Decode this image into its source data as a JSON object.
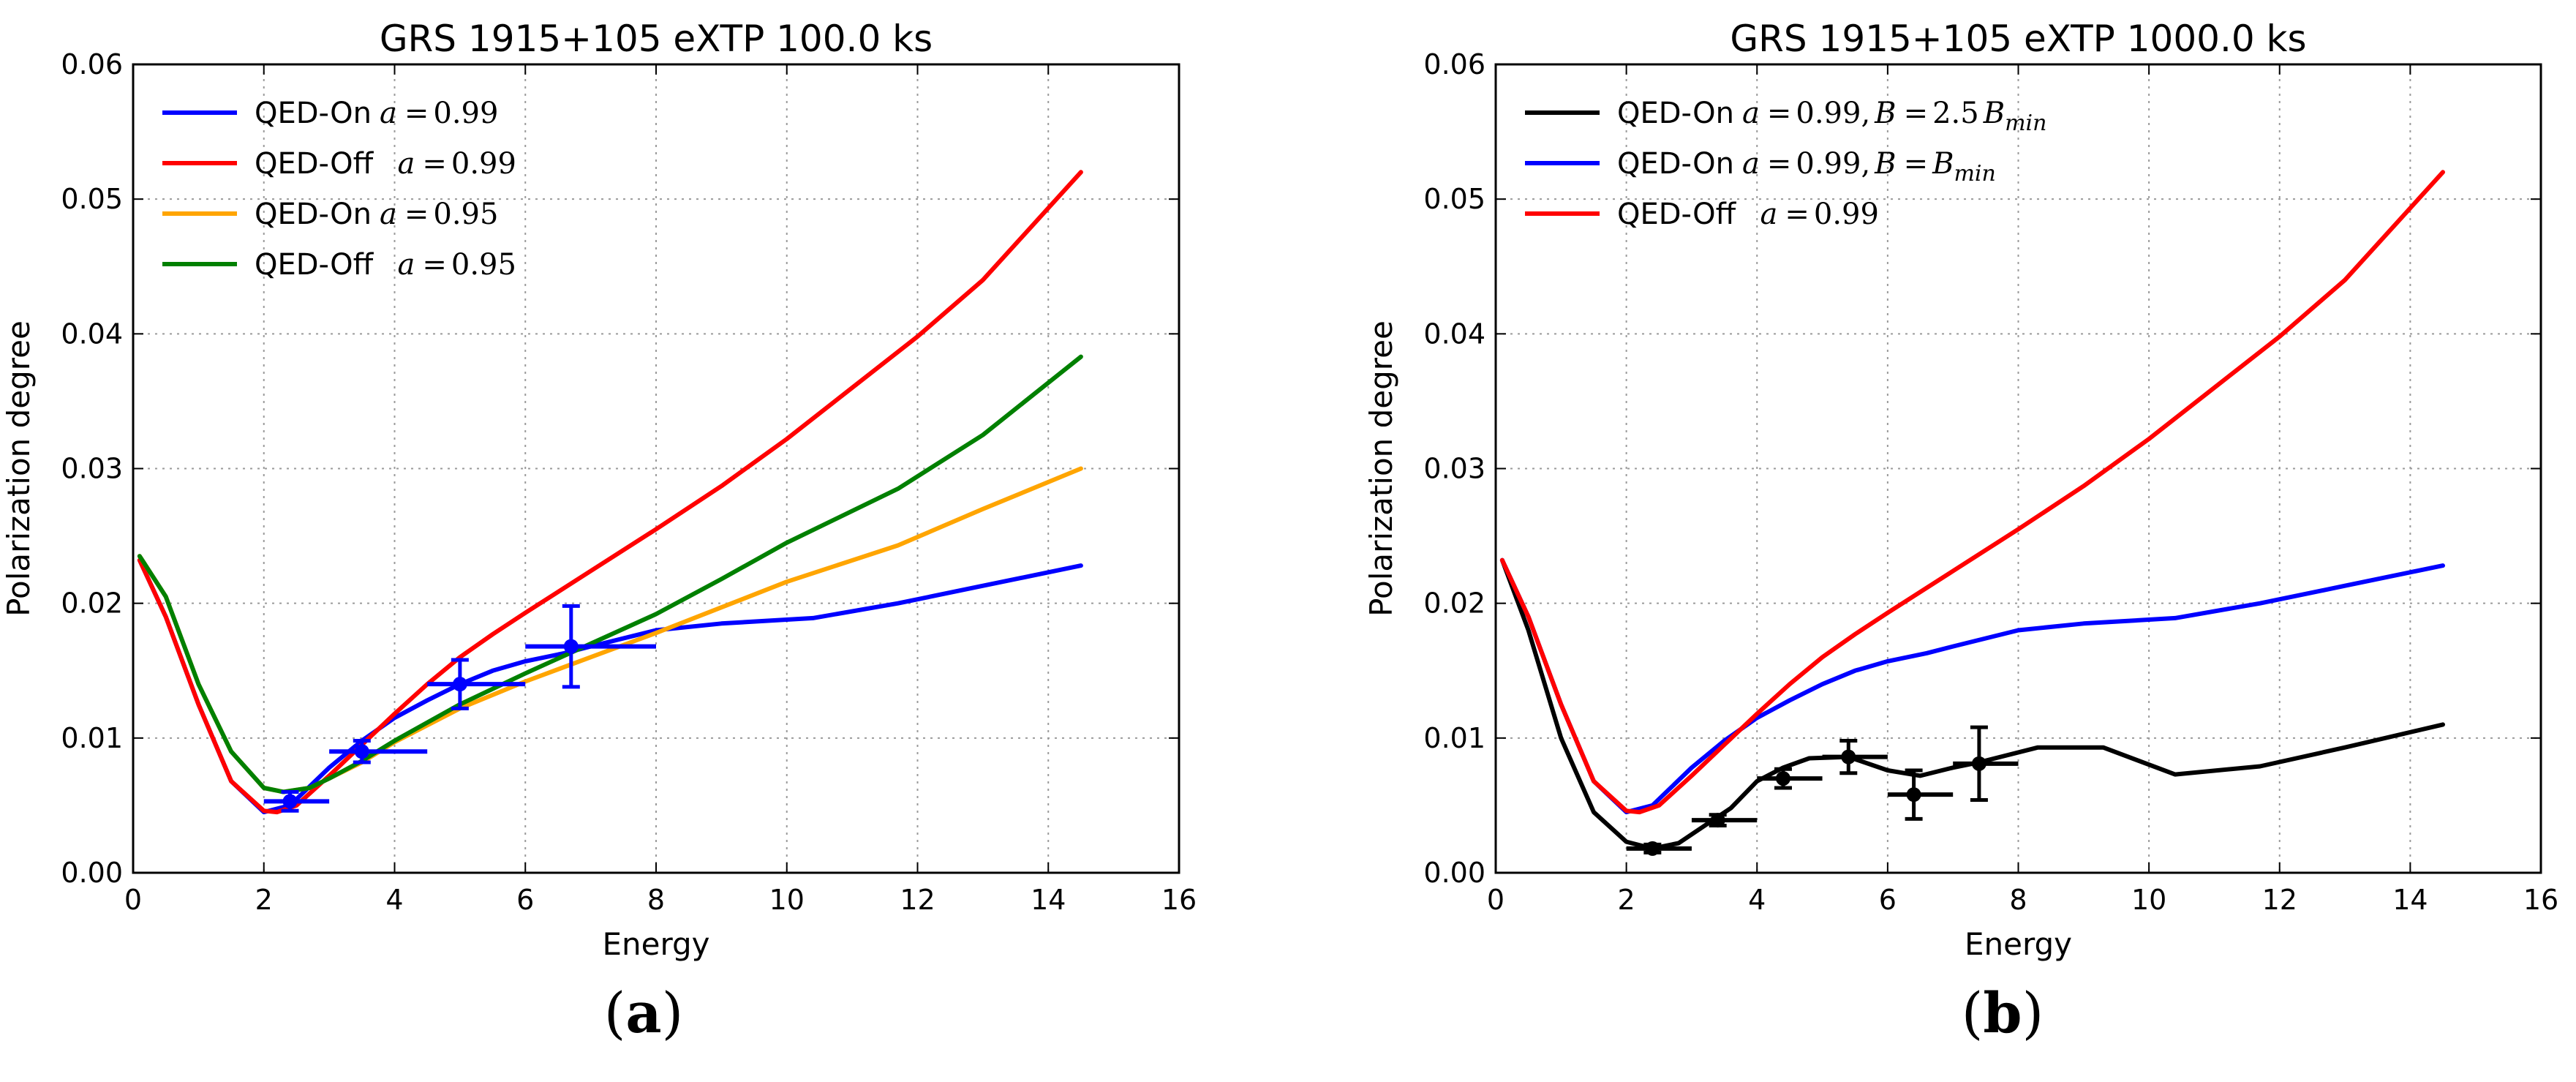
{
  "chart_data": [
    {
      "type": "line",
      "title": "GRS 1915+105 eXTP 100.0 ks",
      "xlabel": "Energy",
      "ylabel": "Polarization degree",
      "xlim": [
        0,
        16
      ],
      "ylim": [
        0,
        0.06
      ],
      "xticks": [
        "0",
        "2",
        "4",
        "6",
        "8",
        "10",
        "12",
        "14",
        "16"
      ],
      "yticks": [
        "0.00",
        "0.01",
        "0.02",
        "0.03",
        "0.04",
        "0.05",
        "0.06"
      ],
      "grid": true,
      "legend_position": "top-left",
      "subcaption": "a",
      "series": [
        {
          "name": "QED-On",
          "math": "a = 0.99",
          "color": "#0000ff",
          "x": [
            0.1,
            0.5,
            1.0,
            1.5,
            2.0,
            2.4,
            3.0,
            3.5,
            4.0,
            4.5,
            5.0,
            5.5,
            6.0,
            6.6,
            7.0,
            8.0,
            9.0,
            10.4,
            11.7,
            13.0,
            14.5
          ],
          "y": [
            0.0232,
            0.019,
            0.0125,
            0.0068,
            0.0045,
            0.005,
            0.0078,
            0.0098,
            0.0115,
            0.0128,
            0.014,
            0.015,
            0.0157,
            0.0163,
            0.0168,
            0.018,
            0.0185,
            0.0189,
            0.02,
            0.0213,
            0.0228
          ]
        },
        {
          "name": "QED-Off",
          "math": "a = 0.99",
          "color": "#ff0000",
          "x": [
            0.1,
            0.5,
            1.0,
            1.5,
            2.0,
            2.2,
            2.5,
            3.0,
            3.5,
            4.0,
            4.5,
            5.0,
            5.5,
            6.0,
            7.0,
            8.0,
            9.0,
            10.0,
            11.0,
            12.0,
            13.0,
            14.5
          ],
          "y": [
            0.0232,
            0.019,
            0.0125,
            0.0068,
            0.0046,
            0.0045,
            0.005,
            0.0072,
            0.0095,
            0.0118,
            0.014,
            0.016,
            0.0177,
            0.0193,
            0.0224,
            0.0255,
            0.0287,
            0.0322,
            0.036,
            0.0398,
            0.044,
            0.052
          ]
        },
        {
          "name": "QED-On",
          "math": "a = 0.95",
          "color": "#ffa500",
          "x": [
            0.1,
            0.5,
            1.0,
            1.5,
            2.0,
            2.3,
            2.7,
            3.0,
            3.5,
            4.0,
            5.0,
            6.0,
            7.0,
            8.0,
            9.0,
            10.0,
            11.7,
            13.0,
            14.5
          ],
          "y": [
            0.0235,
            0.0205,
            0.014,
            0.009,
            0.0063,
            0.006,
            0.0063,
            0.007,
            0.0082,
            0.0097,
            0.0122,
            0.0142,
            0.016,
            0.0178,
            0.0197,
            0.0216,
            0.0243,
            0.027,
            0.03
          ]
        },
        {
          "name": "QED-Off",
          "math": "a = 0.95",
          "color": "#008000",
          "x": [
            0.1,
            0.5,
            1.0,
            1.5,
            2.0,
            2.3,
            2.7,
            3.0,
            3.5,
            4.0,
            5.0,
            6.0,
            7.0,
            8.0,
            9.0,
            10.0,
            11.7,
            13.0,
            14.5
          ],
          "y": [
            0.0235,
            0.0205,
            0.014,
            0.009,
            0.0063,
            0.006,
            0.0063,
            0.007,
            0.0083,
            0.0098,
            0.0125,
            0.0148,
            0.017,
            0.0192,
            0.0218,
            0.0245,
            0.0285,
            0.0325,
            0.0383
          ]
        }
      ],
      "error_points": {
        "color": "#0000ff",
        "points": [
          {
            "x": 2.4,
            "y": 0.0053,
            "xerr": [
              0.4,
              0.6
            ],
            "yerr": 0.0007
          },
          {
            "x": 3.5,
            "y": 0.009,
            "xerr": [
              0.5,
              1.0
            ],
            "yerr": 0.0008
          },
          {
            "x": 5.0,
            "y": 0.014,
            "xerr": [
              0.5,
              1.0
            ],
            "yerr": 0.0018
          },
          {
            "x": 6.7,
            "y": 0.0168,
            "xerr": [
              0.7,
              1.3
            ],
            "yerr": 0.003
          }
        ]
      }
    },
    {
      "type": "line",
      "title": "GRS 1915+105 eXTP 1000.0 ks",
      "xlabel": "Energy",
      "ylabel": "Polarization degree",
      "xlim": [
        0,
        16
      ],
      "ylim": [
        0,
        0.06
      ],
      "xticks": [
        "0",
        "2",
        "4",
        "6",
        "8",
        "10",
        "12",
        "14",
        "16"
      ],
      "yticks": [
        "0.00",
        "0.01",
        "0.02",
        "0.03",
        "0.04",
        "0.05",
        "0.06"
      ],
      "grid": true,
      "legend_position": "top-left",
      "subcaption": "b",
      "series": [
        {
          "name": "QED-On",
          "math": "a = 0.99, B = 2.5B_min",
          "color": "#000000",
          "x": [
            0.1,
            0.5,
            1.0,
            1.5,
            2.0,
            2.4,
            2.8,
            3.2,
            3.6,
            4.0,
            4.4,
            4.8,
            5.4,
            6.0,
            6.5,
            7.0,
            7.4,
            8.3,
            9.3,
            10.4,
            11.7,
            13.0,
            14.5
          ],
          "y": [
            0.0232,
            0.018,
            0.01,
            0.0045,
            0.0023,
            0.0018,
            0.0022,
            0.0035,
            0.0048,
            0.0068,
            0.0078,
            0.0085,
            0.0086,
            0.0076,
            0.0072,
            0.0078,
            0.0082,
            0.0093,
            0.0093,
            0.0073,
            0.0079,
            0.0093,
            0.011
          ]
        },
        {
          "name": "QED-On",
          "math": "a = 0.99, B = B_min",
          "color": "#0000ff",
          "x": [
            0.1,
            0.5,
            1.0,
            1.5,
            2.0,
            2.4,
            3.0,
            3.5,
            4.0,
            4.5,
            5.0,
            5.5,
            6.0,
            6.6,
            7.0,
            8.0,
            9.0,
            10.4,
            11.7,
            13.0,
            14.5
          ],
          "y": [
            0.0232,
            0.019,
            0.0125,
            0.0068,
            0.0045,
            0.005,
            0.0078,
            0.0098,
            0.0115,
            0.0128,
            0.014,
            0.015,
            0.0157,
            0.0163,
            0.0168,
            0.018,
            0.0185,
            0.0189,
            0.02,
            0.0213,
            0.0228
          ]
        },
        {
          "name": "QED-Off",
          "math": "a = 0.99",
          "color": "#ff0000",
          "x": [
            0.1,
            0.5,
            1.0,
            1.5,
            2.0,
            2.2,
            2.5,
            3.0,
            3.5,
            4.0,
            4.5,
            5.0,
            5.5,
            6.0,
            7.0,
            8.0,
            9.0,
            10.0,
            11.0,
            12.0,
            13.0,
            14.5
          ],
          "y": [
            0.0232,
            0.019,
            0.0125,
            0.0068,
            0.0046,
            0.0045,
            0.005,
            0.0072,
            0.0095,
            0.0118,
            0.014,
            0.016,
            0.0177,
            0.0193,
            0.0224,
            0.0255,
            0.0287,
            0.0322,
            0.036,
            0.0398,
            0.044,
            0.052
          ]
        }
      ],
      "error_points": {
        "color": "#000000",
        "points": [
          {
            "x": 2.4,
            "y": 0.0018,
            "xerr": [
              0.4,
              0.6
            ],
            "yerr": 0.0003
          },
          {
            "x": 3.4,
            "y": 0.0039,
            "xerr": [
              0.4,
              0.6
            ],
            "yerr": 0.0004
          },
          {
            "x": 4.4,
            "y": 0.007,
            "xerr": [
              0.4,
              0.6
            ],
            "yerr": 0.0007
          },
          {
            "x": 5.4,
            "y": 0.0086,
            "xerr": [
              0.4,
              0.6
            ],
            "yerr": 0.0012
          },
          {
            "x": 6.4,
            "y": 0.0058,
            "xerr": [
              0.4,
              0.6
            ],
            "yerr": 0.0018
          },
          {
            "x": 7.4,
            "y": 0.0081,
            "xerr": [
              0.4,
              0.6
            ],
            "yerr": 0.0027
          }
        ]
      }
    }
  ]
}
